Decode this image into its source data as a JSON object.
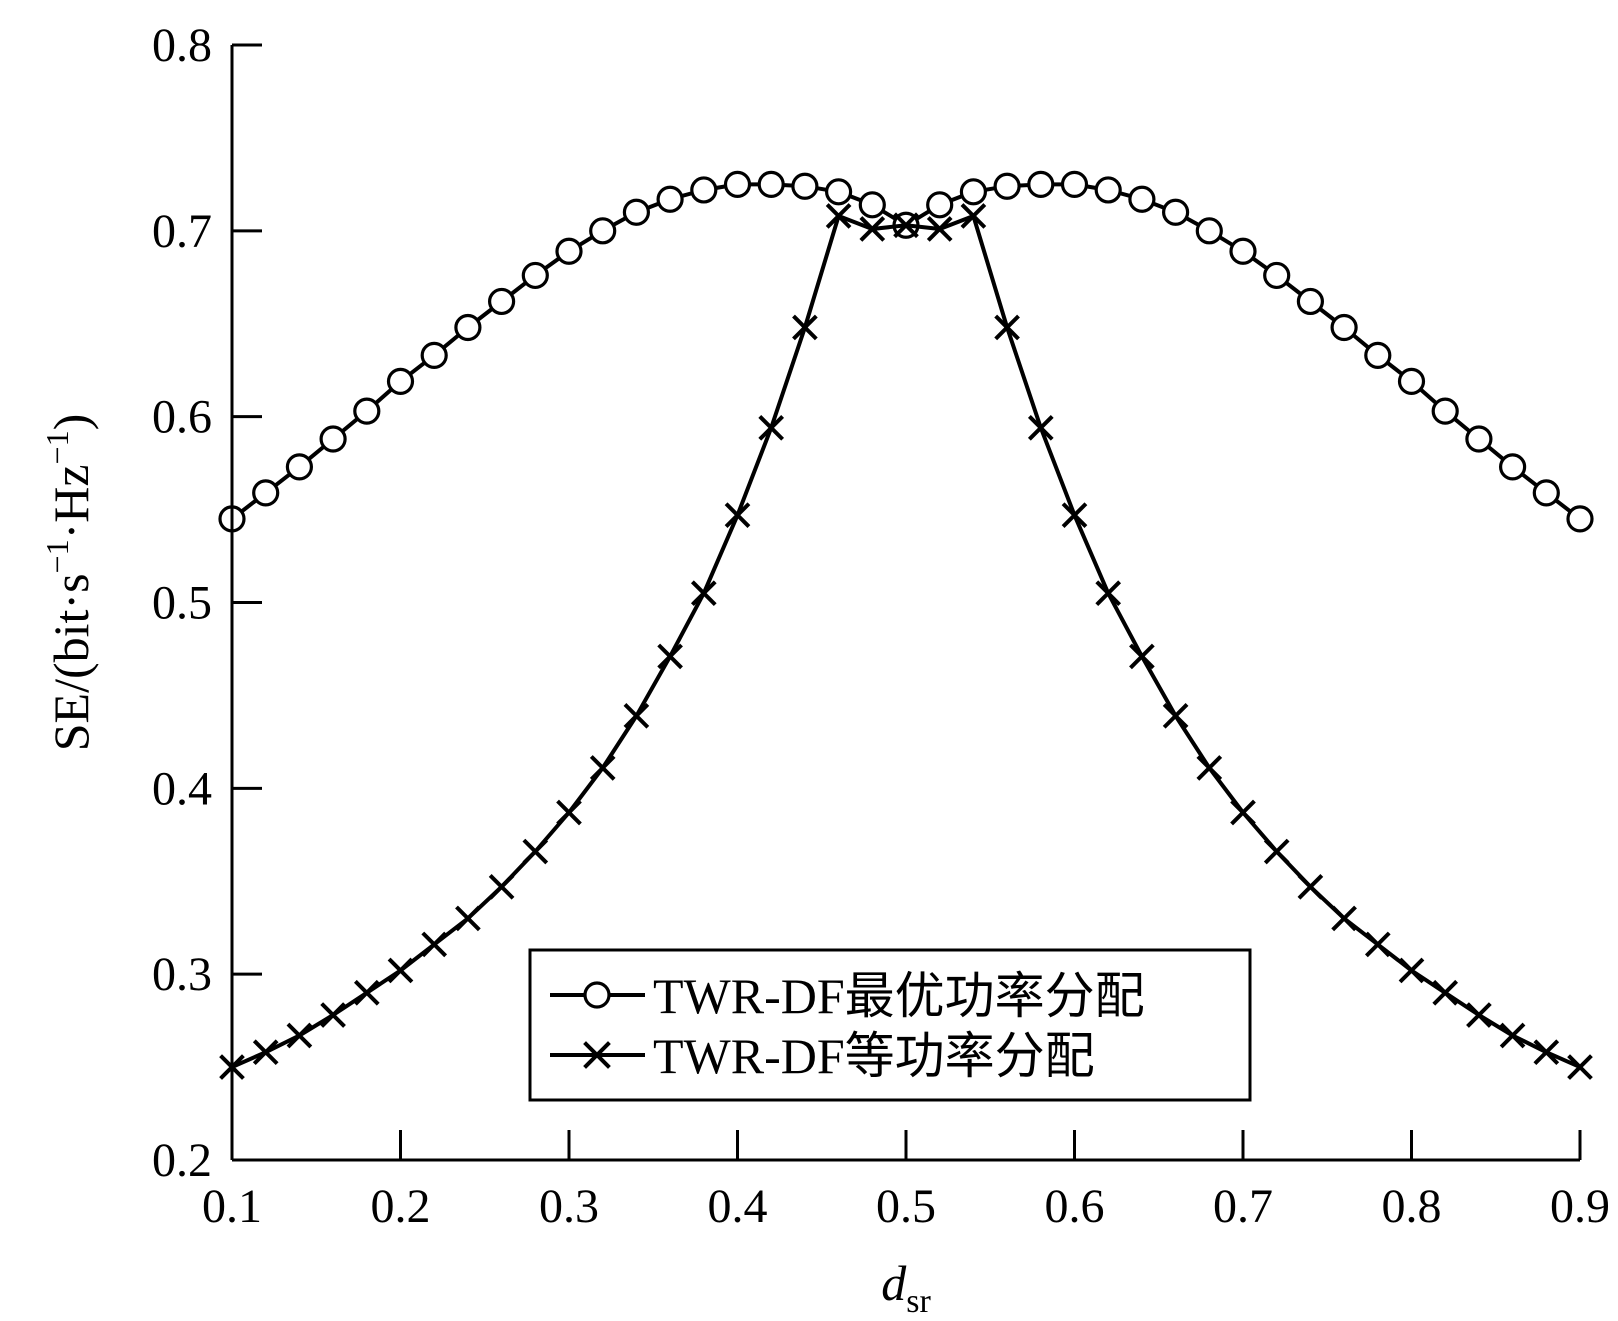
{
  "chart_data": {
    "type": "line",
    "xlabel_main": "d",
    "xlabel_sub": "sr",
    "ylabel_parts": [
      "SE/(bit·s",
      "−1",
      "·Hz",
      "−1",
      ")"
    ],
    "xlim": [
      0.1,
      0.9
    ],
    "ylim": [
      0.2,
      0.8
    ],
    "xticks": [
      "0.1",
      "0.2",
      "0.3",
      "0.4",
      "0.5",
      "0.6",
      "0.7",
      "0.8",
      "0.9"
    ],
    "yticks": [
      "0.2",
      "0.3",
      "0.4",
      "0.5",
      "0.6",
      "0.7",
      "0.8"
    ],
    "grid": false,
    "legend_position": "bottom-center",
    "x": [
      0.1,
      0.12,
      0.14,
      0.16,
      0.18,
      0.2,
      0.22,
      0.24,
      0.26,
      0.28,
      0.3,
      0.32,
      0.34,
      0.36,
      0.38,
      0.4,
      0.42,
      0.44,
      0.46,
      0.48,
      0.5,
      0.52,
      0.54,
      0.56,
      0.58,
      0.6,
      0.62,
      0.64,
      0.66,
      0.68,
      0.7,
      0.72,
      0.74,
      0.76,
      0.78,
      0.8,
      0.82,
      0.84,
      0.86,
      0.88,
      0.9
    ],
    "series": [
      {
        "name": "TWR-DF最优功率分配",
        "marker": "circle",
        "values": [
          0.545,
          0.559,
          0.573,
          0.588,
          0.603,
          0.619,
          0.633,
          0.648,
          0.662,
          0.676,
          0.689,
          0.7,
          0.71,
          0.717,
          0.722,
          0.725,
          0.725,
          0.724,
          0.721,
          0.714,
          0.703,
          0.714,
          0.721,
          0.724,
          0.725,
          0.725,
          0.722,
          0.717,
          0.71,
          0.7,
          0.689,
          0.676,
          0.662,
          0.648,
          0.633,
          0.619,
          0.603,
          0.588,
          0.573,
          0.559,
          0.545
        ]
      },
      {
        "name": "TWR-DF等功率分配",
        "marker": "x",
        "values": [
          0.25,
          0.258,
          0.267,
          0.278,
          0.29,
          0.302,
          0.316,
          0.33,
          0.347,
          0.366,
          0.387,
          0.411,
          0.439,
          0.471,
          0.505,
          0.547,
          0.594,
          0.648,
          0.708,
          0.701,
          0.703,
          0.701,
          0.708,
          0.648,
          0.594,
          0.547,
          0.505,
          0.471,
          0.439,
          0.411,
          0.387,
          0.366,
          0.347,
          0.33,
          0.316,
          0.302,
          0.29,
          0.278,
          0.267,
          0.258,
          0.25
        ]
      }
    ]
  }
}
